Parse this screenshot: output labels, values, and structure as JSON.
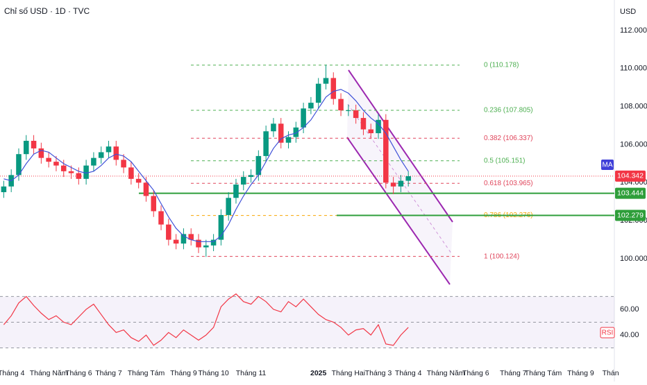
{
  "chart_data": {
    "type": "candlestick",
    "title": "Chỉ số USD · 1D · TVC",
    "currency": "USD",
    "categories": [
      null,
      "Tháng 4",
      null,
      null,
      null,
      null,
      "Tháng Năm",
      null,
      null,
      null,
      "Tháng 6",
      null,
      null,
      null,
      "Tháng 7",
      null,
      null,
      null,
      null,
      "Tháng Tám",
      null,
      null,
      null,
      null,
      "Tháng 9",
      null,
      null,
      null,
      "Tháng 10",
      null,
      null,
      null,
      null,
      "Tháng 11",
      null,
      null,
      null,
      null,
      null,
      null,
      null,
      null,
      "2025",
      null,
      null,
      null,
      "Tháng Hai",
      null,
      null,
      null,
      "Tháng 3",
      null,
      null,
      null,
      "Tháng 4",
      null,
      null,
      null,
      null,
      "Tháng Năm",
      null,
      null,
      null,
      "Tháng 6",
      null,
      null,
      null,
      null,
      "Tháng 7",
      null,
      null,
      null,
      "Tháng Tám",
      null,
      null,
      null,
      null,
      "Tháng 9",
      null,
      null,
      null,
      "Thán"
    ],
    "open": [
      103.5,
      103.8,
      104.4,
      105.5,
      106.2,
      105.8,
      105.3,
      105.1,
      104.9,
      104.6,
      104.5,
      104.2,
      104.9,
      105.3,
      105.6,
      105.9,
      105.2,
      104.8,
      104.2,
      104.0,
      103.3,
      102.5,
      101.8,
      101.0,
      100.8,
      101.3,
      101.0,
      100.6,
      100.7,
      101.0,
      102.3,
      103.2,
      103.9,
      104.3,
      104.4,
      105.4,
      106.7,
      107.1,
      106.1,
      106.4,
      106.9,
      107.9,
      108.2,
      109.2,
      109.5,
      108.4,
      107.8,
      107.8,
      107.4,
      106.8,
      106.6,
      107.3,
      104.0,
      103.8,
      104.1,
      null,
      null,
      null,
      null,
      null,
      null,
      null,
      null,
      null,
      null,
      null,
      null,
      null,
      null,
      null,
      null,
      null,
      null,
      null,
      null,
      null,
      null,
      null,
      null,
      null,
      null,
      null
    ],
    "high": [
      104.1,
      104.7,
      105.8,
      106.5,
      106.5,
      106.1,
      105.6,
      105.4,
      105.2,
      104.9,
      104.8,
      105.2,
      105.6,
      105.9,
      106.2,
      106.2,
      105.5,
      105.1,
      104.5,
      104.3,
      103.6,
      102.8,
      102.1,
      101.3,
      101.6,
      101.6,
      101.3,
      101.0,
      101.3,
      102.6,
      103.5,
      104.2,
      104.6,
      104.7,
      105.7,
      107.0,
      107.4,
      107.4,
      106.7,
      107.2,
      108.2,
      108.5,
      109.5,
      110.2,
      109.8,
      108.7,
      108.1,
      108.1,
      107.7,
      107.1,
      107.6,
      107.6,
      104.3,
      104.4,
      104.6,
      null,
      null,
      null,
      null,
      null,
      null,
      null,
      null,
      null,
      null,
      null,
      null,
      null,
      null,
      null,
      null,
      null,
      null,
      null,
      null,
      null,
      null,
      null,
      null,
      null,
      null,
      null
    ],
    "low": [
      103.2,
      103.5,
      104.1,
      105.2,
      105.5,
      105.0,
      104.8,
      104.6,
      104.3,
      104.2,
      103.9,
      103.9,
      104.6,
      105.0,
      105.3,
      104.9,
      104.5,
      103.9,
      103.7,
      103.0,
      102.2,
      101.5,
      100.7,
      100.5,
      100.5,
      100.7,
      100.3,
      100.1,
      100.4,
      100.7,
      102.0,
      102.9,
      103.6,
      104.0,
      104.1,
      105.1,
      106.4,
      105.8,
      105.8,
      106.1,
      106.6,
      107.6,
      107.9,
      108.9,
      108.1,
      107.5,
      107.5,
      107.1,
      106.5,
      106.3,
      106.3,
      103.7,
      103.4,
      103.5,
      103.8,
      null,
      null,
      null,
      null,
      null,
      null,
      null,
      null,
      null,
      null,
      null,
      null,
      null,
      null,
      null,
      null,
      null,
      null,
      null,
      null,
      null,
      null,
      null,
      null,
      null,
      null,
      null
    ],
    "close": [
      103.8,
      104.4,
      105.5,
      106.2,
      105.8,
      105.3,
      105.1,
      104.9,
      104.6,
      104.5,
      104.2,
      104.9,
      105.3,
      105.6,
      105.9,
      105.2,
      104.8,
      104.2,
      104.0,
      103.3,
      102.5,
      101.8,
      101.0,
      100.8,
      101.3,
      101.0,
      100.6,
      100.7,
      101.0,
      102.3,
      103.2,
      103.9,
      104.3,
      104.4,
      105.4,
      106.7,
      107.1,
      106.1,
      106.4,
      106.9,
      107.9,
      108.2,
      109.2,
      109.5,
      108.4,
      107.8,
      107.8,
      107.4,
      106.8,
      106.6,
      107.3,
      104.0,
      103.8,
      104.1,
      104.34,
      null,
      null,
      null,
      null,
      null,
      null,
      null,
      null,
      null,
      null,
      null,
      null,
      null,
      null,
      null,
      null,
      null,
      null,
      null,
      null,
      null,
      null,
      null,
      null,
      null,
      null,
      null
    ],
    "up_color": "#089981",
    "down_color": "#f23645",
    "ma": {
      "name": "MA",
      "color": "#3f51d8",
      "values": [
        104.2,
        104.1,
        104.4,
        105.0,
        105.5,
        105.7,
        105.6,
        105.3,
        105.0,
        104.8,
        104.6,
        104.5,
        104.6,
        104.9,
        105.3,
        105.5,
        105.4,
        105.1,
        104.6,
        104.1,
        103.6,
        102.9,
        102.2,
        101.6,
        101.2,
        101.0,
        100.9,
        100.9,
        100.9,
        101.2,
        101.8,
        102.6,
        103.3,
        103.9,
        104.4,
        105.1,
        105.8,
        106.3,
        106.5,
        106.6,
        106.9,
        107.3,
        107.9,
        108.5,
        108.8,
        108.9,
        108.7,
        108.3,
        107.8,
        107.4,
        107.1,
        106.6,
        105.9,
        105.2,
        104.6,
        null,
        null,
        null,
        null,
        null,
        null,
        null,
        null,
        null,
        null,
        null,
        null,
        null,
        null,
        null,
        null,
        null,
        null,
        null,
        null,
        null,
        null,
        null,
        null,
        null,
        null,
        null
      ]
    },
    "ylim": [
      98.47,
      113.6
    ],
    "yticks": [
      {
        "value": 100,
        "label": "100.000"
      },
      {
        "value": 102,
        "label": "102.000"
      },
      {
        "value": 104,
        "label": "104.000"
      },
      {
        "value": 106,
        "label": "106.000"
      },
      {
        "value": 108,
        "label": "108.000"
      },
      {
        "value": 110,
        "label": "110.000"
      },
      {
        "value": 112,
        "label": "112.000"
      }
    ],
    "fib_levels": [
      {
        "value": 110.178,
        "label": "0 (110.178)",
        "color": "#4caf50"
      },
      {
        "value": 107.805,
        "label": "0.236 (107.805)",
        "color": "#4caf50"
      },
      {
        "value": 106.337,
        "label": "0.382 (106.337)",
        "color": "#e0455b"
      },
      {
        "value": 105.151,
        "label": "0.5 (105.151)",
        "color": "#4caf50"
      },
      {
        "value": 103.965,
        "label": "0.618 (103.965)",
        "color": "#e0455b"
      },
      {
        "value": 102.276,
        "label": "0.786 (102.276)",
        "color": "#f7a600"
      },
      {
        "value": 100.124,
        "label": "1 (100.124)",
        "color": "#e0455b"
      }
    ],
    "last_price": 104.342,
    "last_color": "#f23645",
    "support_lines": [
      {
        "value": 103.444,
        "color": "#2e9e3a"
      },
      {
        "value": 102.279,
        "color": "#2e9e3a"
      }
    ],
    "rsi": {
      "name": "RSI",
      "color": "#f23645",
      "values": [
        48,
        55,
        65,
        70,
        63,
        57,
        52,
        55,
        50,
        48,
        54,
        60,
        64,
        56,
        48,
        42,
        44,
        38,
        35,
        40,
        32,
        36,
        42,
        38,
        44,
        40,
        36,
        40,
        46,
        62,
        68,
        72,
        66,
        64,
        70,
        66,
        60,
        58,
        66,
        62,
        68,
        62,
        56,
        52,
        50,
        46,
        40,
        44,
        45,
        40,
        48,
        33,
        32,
        40,
        46,
        null,
        null,
        null,
        null,
        null,
        null,
        null,
        null,
        null,
        null,
        null,
        null,
        null,
        null,
        null,
        null,
        null,
        null,
        null,
        null,
        null,
        null,
        null,
        null,
        null,
        null,
        null
      ],
      "ylim": [
        20,
        74
      ],
      "yticks": [
        {
          "value": 40,
          "label": "40.00"
        },
        {
          "value": 60,
          "label": "60.00"
        }
      ],
      "levels": [
        30,
        50,
        70
      ]
    }
  }
}
